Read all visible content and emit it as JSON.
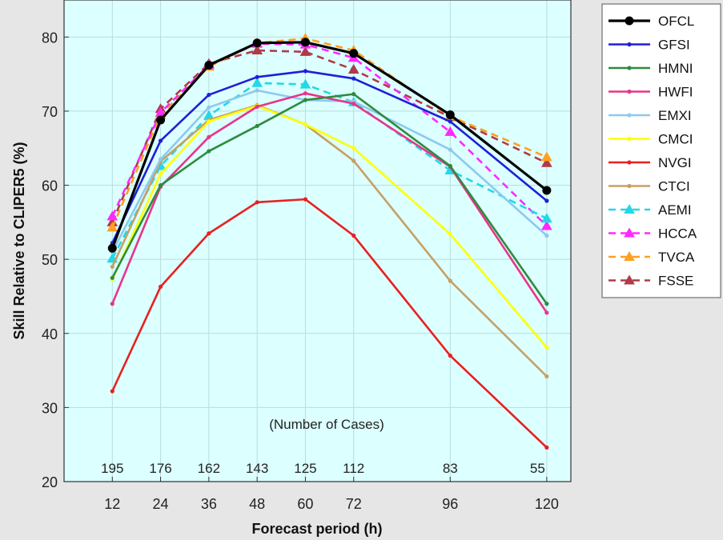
{
  "chart_data": {
    "type": "line",
    "title": "",
    "xlabel": "Forecast period (h)",
    "ylabel": "Skill Relative to CLIPER5 (%)",
    "xlim": [
      0,
      126
    ],
    "ylim": [
      20,
      85
    ],
    "x": [
      12,
      24,
      36,
      48,
      60,
      72,
      96,
      120
    ],
    "xticks": [
      "12",
      "24",
      "36",
      "48",
      "60",
      "72",
      "96",
      "120"
    ],
    "yticks": [
      "20",
      "30",
      "40",
      "50",
      "60",
      "70",
      "80"
    ],
    "grid": true,
    "background": "#dcffff",
    "legend_position": "outside-right",
    "annotation": "(Number of Cases)",
    "case_counts": [
      "195",
      "176",
      "162",
      "143",
      "125",
      "112",
      "83",
      "55"
    ],
    "series": [
      {
        "name": "OFCL",
        "color": "#000000",
        "dashed": false,
        "marker": "circle",
        "values": [
          51.5,
          68.8,
          76.2,
          79.2,
          79.3,
          77.8,
          69.5,
          59.3
        ]
      },
      {
        "name": "GFSI",
        "color": "#1f1fd6",
        "dashed": false,
        "marker": "dot",
        "values": [
          52.2,
          66.0,
          72.2,
          74.6,
          75.4,
          74.4,
          68.6,
          57.9
        ]
      },
      {
        "name": "HMNI",
        "color": "#2e8b3e",
        "dashed": false,
        "marker": "dot",
        "values": [
          47.5,
          60.0,
          64.6,
          68.0,
          71.5,
          72.3,
          62.6,
          44.0
        ]
      },
      {
        "name": "HWFI",
        "color": "#e8358a",
        "dashed": false,
        "marker": "dot",
        "values": [
          44.0,
          59.8,
          66.5,
          70.6,
          72.4,
          71.0,
          62.5,
          42.8
        ]
      },
      {
        "name": "EMXI",
        "color": "#8ec8ee",
        "dashed": false,
        "marker": "dot",
        "values": [
          51.0,
          63.5,
          70.5,
          72.8,
          71.5,
          71.3,
          64.8,
          53.2
        ]
      },
      {
        "name": "CMCI",
        "color": "#ffff00",
        "dashed": false,
        "marker": "dot",
        "values": [
          47.3,
          61.5,
          68.6,
          70.7,
          68.2,
          65.0,
          53.4,
          38.1
        ]
      },
      {
        "name": "NVGI",
        "color": "#e82020",
        "dashed": false,
        "marker": "dot",
        "values": [
          32.2,
          46.3,
          53.5,
          57.7,
          58.1,
          53.2,
          37.0,
          24.6
        ]
      },
      {
        "name": "CTCI",
        "color": "#c8a062",
        "dashed": false,
        "marker": "dot",
        "values": [
          49.0,
          63.2,
          68.8,
          70.8,
          68.2,
          63.3,
          47.1,
          34.2
        ]
      },
      {
        "name": "AEMI",
        "color": "#22d8e8",
        "dashed": true,
        "marker": "triangle",
        "values": [
          50.1,
          62.6,
          69.4,
          73.8,
          73.6,
          71.2,
          62.0,
          55.5
        ]
      },
      {
        "name": "HCCA",
        "color": "#ff28ff",
        "dashed": true,
        "marker": "triangle",
        "values": [
          55.8,
          69.8,
          76.2,
          79.1,
          79.0,
          77.2,
          67.2,
          54.5
        ]
      },
      {
        "name": "TVCA",
        "color": "#ffa020",
        "dashed": true,
        "marker": "triangle",
        "values": [
          54.3,
          69.5,
          76.0,
          79.2,
          79.8,
          78.2,
          69.3,
          63.8
        ]
      },
      {
        "name": "FSSE",
        "color": "#b03a48",
        "dashed": true,
        "marker": "triangle",
        "values": [
          55.0,
          70.3,
          76.4,
          78.2,
          78.0,
          75.6,
          69.2,
          63.0
        ]
      }
    ]
  }
}
